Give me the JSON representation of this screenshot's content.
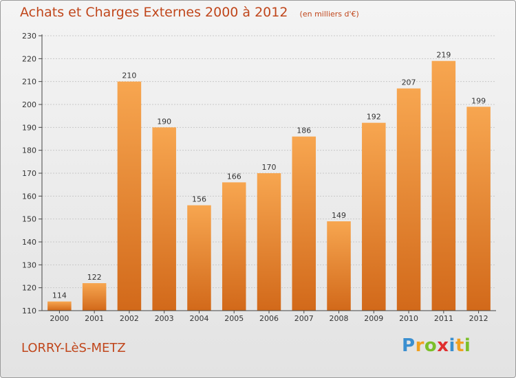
{
  "header": {
    "title": "Achats et Charges Externes 2000 à 2012",
    "unit": "(en milliers d'€)"
  },
  "footer": {
    "commune": "LORRY-LèS-METZ",
    "logo": {
      "text": "Proxiti",
      "letters": [
        {
          "char": "P",
          "color": "#3a8fd0"
        },
        {
          "char": "r",
          "color": "#f0a020"
        },
        {
          "char": "o",
          "color": "#7bbf2a"
        },
        {
          "char": "x",
          "color": "#e02f2f"
        },
        {
          "char": "i",
          "color": "#3a8fd0"
        },
        {
          "char": "t",
          "color": "#f0a020"
        },
        {
          "char": "i",
          "color": "#7bbf2a"
        }
      ]
    }
  },
  "colors": {
    "title": "#c0461b",
    "bar_top": "#f7a650",
    "bar_bottom": "#d2691a",
    "grid": "#c8c8c8",
    "axis": "#444444"
  },
  "chart_data": {
    "type": "bar",
    "title": "Achats et Charges Externes 2000 à 2012",
    "xlabel": "",
    "ylabel": "",
    "categories": [
      "2000",
      "2001",
      "2002",
      "2003",
      "2004",
      "2005",
      "2006",
      "2007",
      "2008",
      "2009",
      "2010",
      "2011",
      "2012"
    ],
    "values": [
      114,
      122,
      210,
      190,
      156,
      166,
      170,
      186,
      149,
      192,
      207,
      219,
      199
    ],
    "ylim": [
      110,
      230
    ],
    "yticks": [
      110,
      120,
      130,
      140,
      150,
      160,
      170,
      180,
      190,
      200,
      210,
      220,
      230
    ],
    "grid": true,
    "legend": "none",
    "data_labels": true
  }
}
